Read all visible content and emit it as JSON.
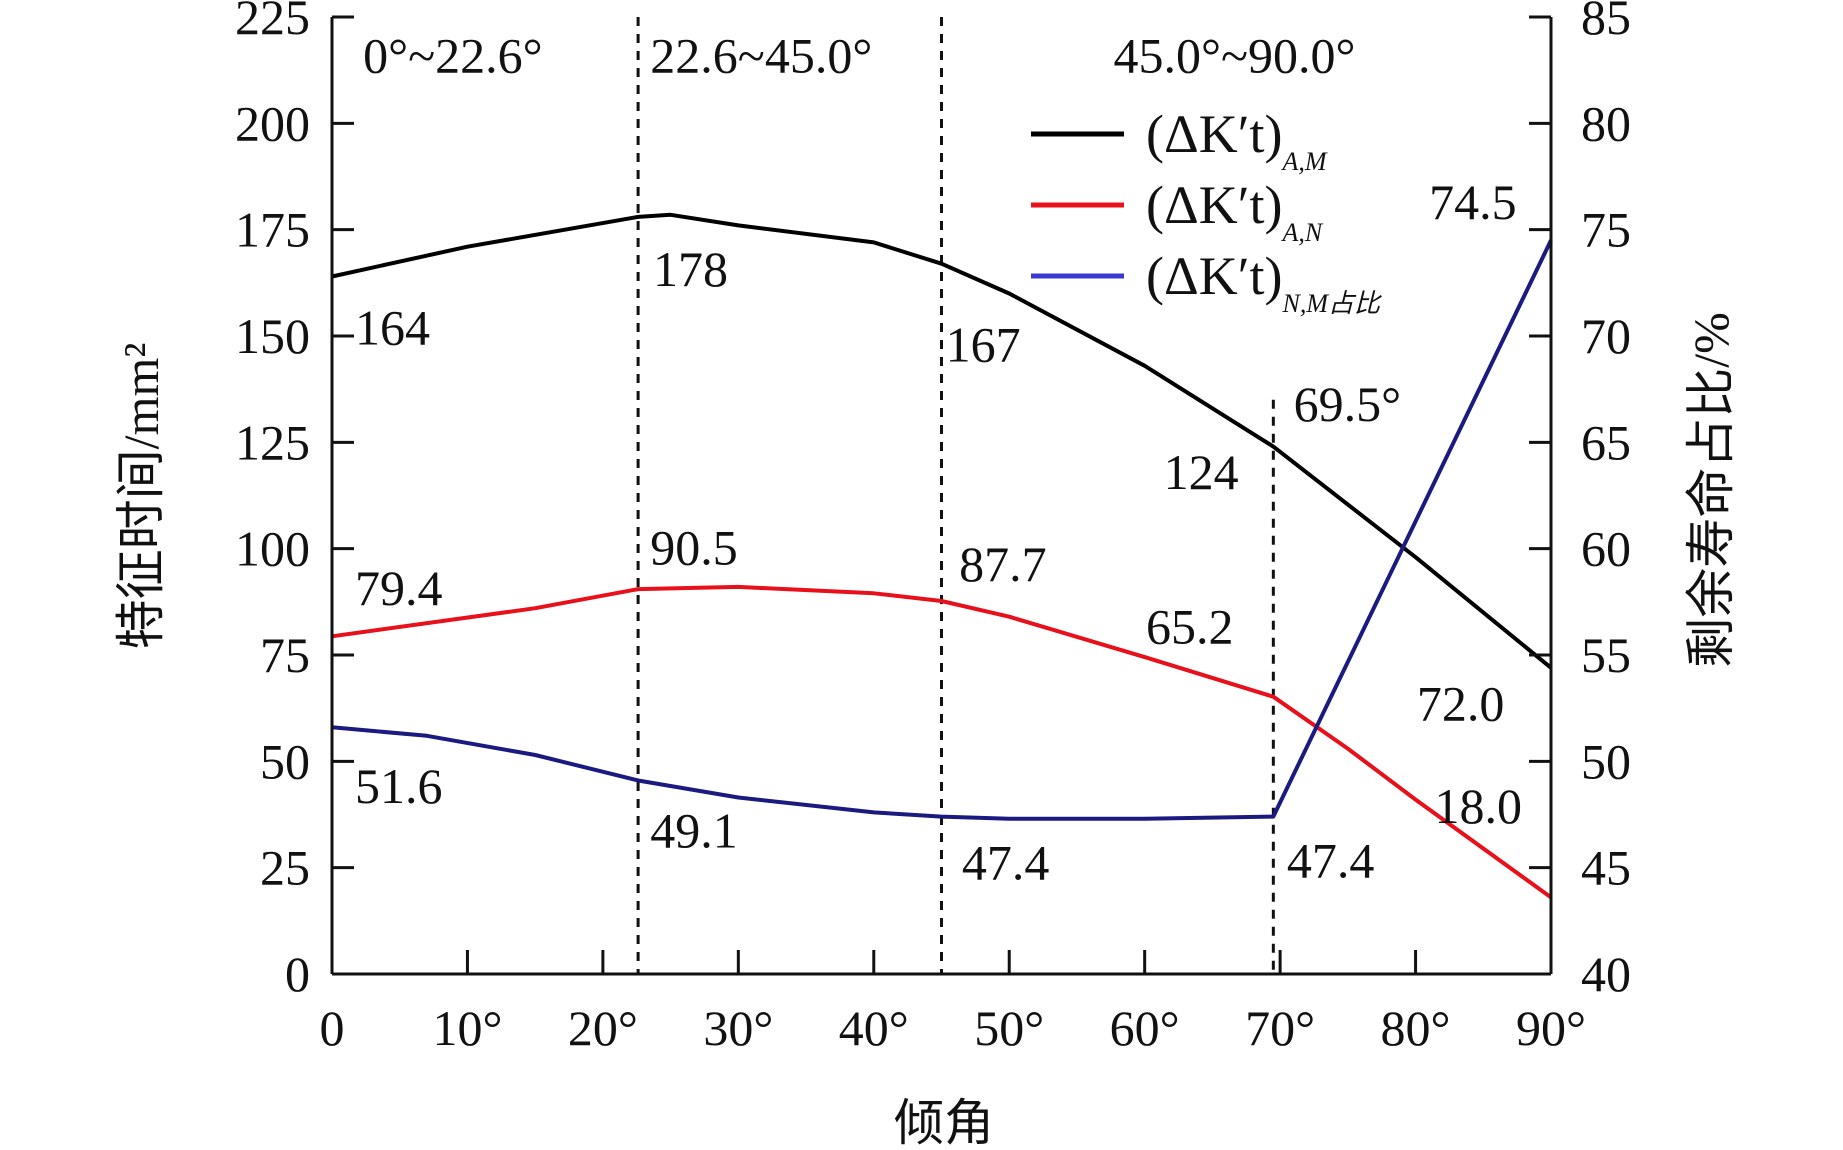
{
  "chart_data": {
    "type": "line",
    "xlabel": "倾角",
    "ylabel_left": "特征时间/mm²",
    "ylabel_right": "剩余寿命占比/%",
    "xlim": [
      0,
      90
    ],
    "ylim_left": [
      0,
      225
    ],
    "ylim_right": [
      40,
      85
    ],
    "x_ticks": [
      0,
      10,
      20,
      30,
      40,
      50,
      60,
      70,
      80,
      90
    ],
    "x_tick_labels": [
      "0",
      "10°",
      "20°",
      "30°",
      "40°",
      "50°",
      "60°",
      "70°",
      "80°",
      "90°"
    ],
    "y_left_ticks": [
      "0",
      "25",
      "50",
      "75",
      "100",
      "125",
      "150",
      "175",
      "200",
      "225"
    ],
    "y_right_ticks": [
      "40",
      "45",
      "50",
      "55",
      "60",
      "65",
      "70",
      "75",
      "80",
      "85"
    ],
    "grid": false,
    "legend_position": "top-right",
    "series": [
      {
        "name": "(ΔK′t)",
        "sub": "A,M",
        "axis": "left",
        "color": "#000000",
        "x": [
          0,
          10,
          22.6,
          25,
          30,
          40,
          45,
          50,
          60,
          69.5,
          80,
          90
        ],
        "y": [
          164,
          171,
          178,
          178.5,
          176,
          172,
          167,
          160,
          143,
          124,
          98,
          72
        ]
      },
      {
        "name": "(ΔK′t)",
        "sub": "A,N",
        "axis": "left",
        "color": "#e8101a",
        "x": [
          0,
          15,
          22.6,
          30,
          40,
          45,
          50,
          60,
          69.5,
          75,
          80,
          90
        ],
        "y": [
          79.4,
          86,
          90.5,
          91,
          89.5,
          87.7,
          84,
          74.5,
          65.2,
          53,
          41,
          18
        ]
      },
      {
        "name": "(ΔK′t)",
        "sub": "N,M占比",
        "axis": "right",
        "color": "#1a1a80",
        "legend_color": "#3a3ad0",
        "x": [
          0,
          7,
          15,
          22.6,
          30,
          40,
          45,
          50,
          60,
          69.5,
          90
        ],
        "y": [
          51.6,
          51.2,
          50.3,
          49.1,
          48.3,
          47.6,
          47.4,
          47.3,
          47.3,
          47.4,
          74.5
        ]
      }
    ],
    "dividers": [
      {
        "x": 22.6,
        "from": 0,
        "to": 225
      },
      {
        "x": 45.0,
        "from": 0,
        "to": 225
      },
      {
        "x": 69.5,
        "from": 0,
        "to": 135
      }
    ],
    "annotations": [
      {
        "text": "0°~22.6°",
        "x": 2.3,
        "y": 212
      },
      {
        "text": "22.6~45.0°",
        "x": 23.5,
        "y": 212
      },
      {
        "text": "45.0°~90.0°",
        "x": 57.7,
        "y": 212
      },
      {
        "text": "164",
        "x": 1.7,
        "y": 148
      },
      {
        "text": "178",
        "x": 23.7,
        "y": 161.7
      },
      {
        "text": "167",
        "x": 45.3,
        "y": 144
      },
      {
        "text": "69.5°",
        "x": 71,
        "y": 130
      },
      {
        "text": "124",
        "x": 61.4,
        "y": 114
      },
      {
        "text": "74.5",
        "x": 81,
        "y": 177.5
      },
      {
        "text": "72.0",
        "x": 80.1,
        "y": 59.6
      },
      {
        "text": "90.5",
        "x": 23.5,
        "y": 96.3
      },
      {
        "text": "79.4",
        "x": 1.7,
        "y": 86.8
      },
      {
        "text": "87.7",
        "x": 46.3,
        "y": 92.4
      },
      {
        "text": "65.2",
        "x": 60.1,
        "y": 77.7
      },
      {
        "text": "51.6",
        "x": 1.7,
        "y": 40.2
      },
      {
        "text": "18.0",
        "x": 81.4,
        "y": 35.5
      },
      {
        "text": "49.1",
        "x": 23.5,
        "y": 29.7
      },
      {
        "text": "47.4",
        "x": 46.5,
        "y": 22.2
      },
      {
        "text": "47.4",
        "x": 70.5,
        "y": 22.7
      }
    ]
  }
}
